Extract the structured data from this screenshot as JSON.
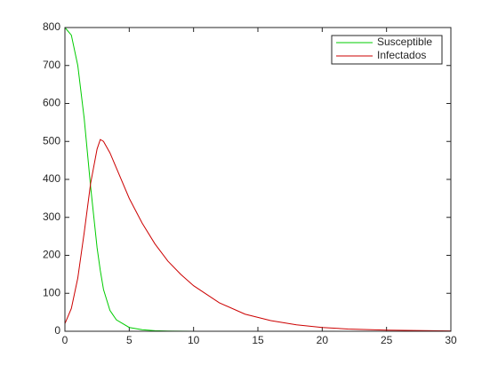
{
  "chart_data": {
    "type": "line",
    "x": [
      0,
      0.5,
      1,
      1.5,
      2,
      2.5,
      2.75,
      3,
      3.5,
      4,
      5,
      6,
      7,
      8,
      9,
      10,
      12,
      14,
      16,
      18,
      20,
      22,
      25,
      30
    ],
    "series": [
      {
        "name": "Susceptible",
        "color": "#00cc00",
        "values": [
          800,
          780,
          700,
          560,
          380,
          220,
          160,
          110,
          55,
          30,
          10,
          4,
          1.5,
          0.6,
          0.3,
          0.1,
          0,
          0,
          0,
          0,
          0,
          0,
          0,
          0
        ]
      },
      {
        "name": "Infectados",
        "color": "#cc0000",
        "values": [
          20,
          60,
          140,
          260,
          390,
          480,
          505,
          500,
          470,
          430,
          350,
          285,
          230,
          185,
          150,
          120,
          75,
          45,
          28,
          17,
          10,
          6,
          3,
          1
        ]
      }
    ],
    "xlim": [
      0,
      30
    ],
    "xticks": [
      0,
      5,
      10,
      15,
      20,
      25,
      30
    ],
    "ylim": [
      0,
      800
    ],
    "yticks": [
      0,
      100,
      200,
      300,
      400,
      500,
      600,
      700,
      800
    ],
    "grid": false,
    "legend": "northeast"
  }
}
